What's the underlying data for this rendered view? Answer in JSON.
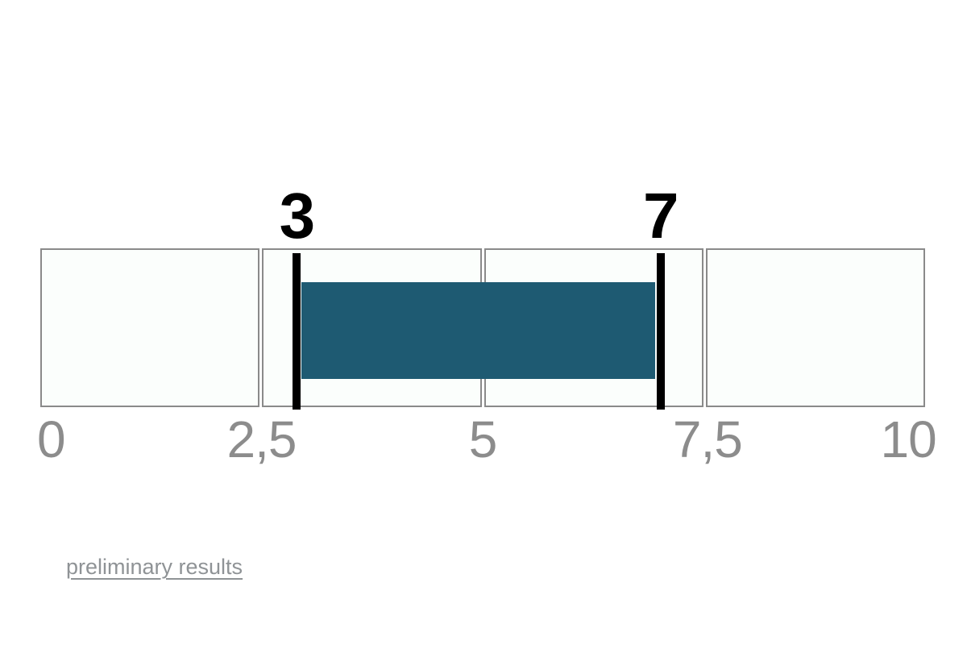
{
  "chart_data": {
    "type": "bar",
    "subtype": "horizontal-range-indicator",
    "title": "",
    "x_axis": {
      "min": 0,
      "max": 10,
      "tick_labels": [
        "0",
        "2,5",
        "5",
        "7,5",
        "10"
      ],
      "tick_values": [
        0,
        2.5,
        5,
        7.5,
        10
      ],
      "decimal_separator": "comma"
    },
    "track_segments": 4,
    "range": {
      "start": 3,
      "end": 7,
      "start_label": "3",
      "end_label": "7"
    },
    "legend": "none",
    "colors": {
      "range_fill": "#1e5a72",
      "marker": "#000000",
      "value_label": "#000000",
      "cell_background": "#fbfefc",
      "cell_border": "#8a8a8a",
      "tick_label": "#8c8c8c",
      "link_text": "#8f9396",
      "page_background": "#ffffff"
    }
  },
  "footer": {
    "link_label": "preliminary results"
  }
}
